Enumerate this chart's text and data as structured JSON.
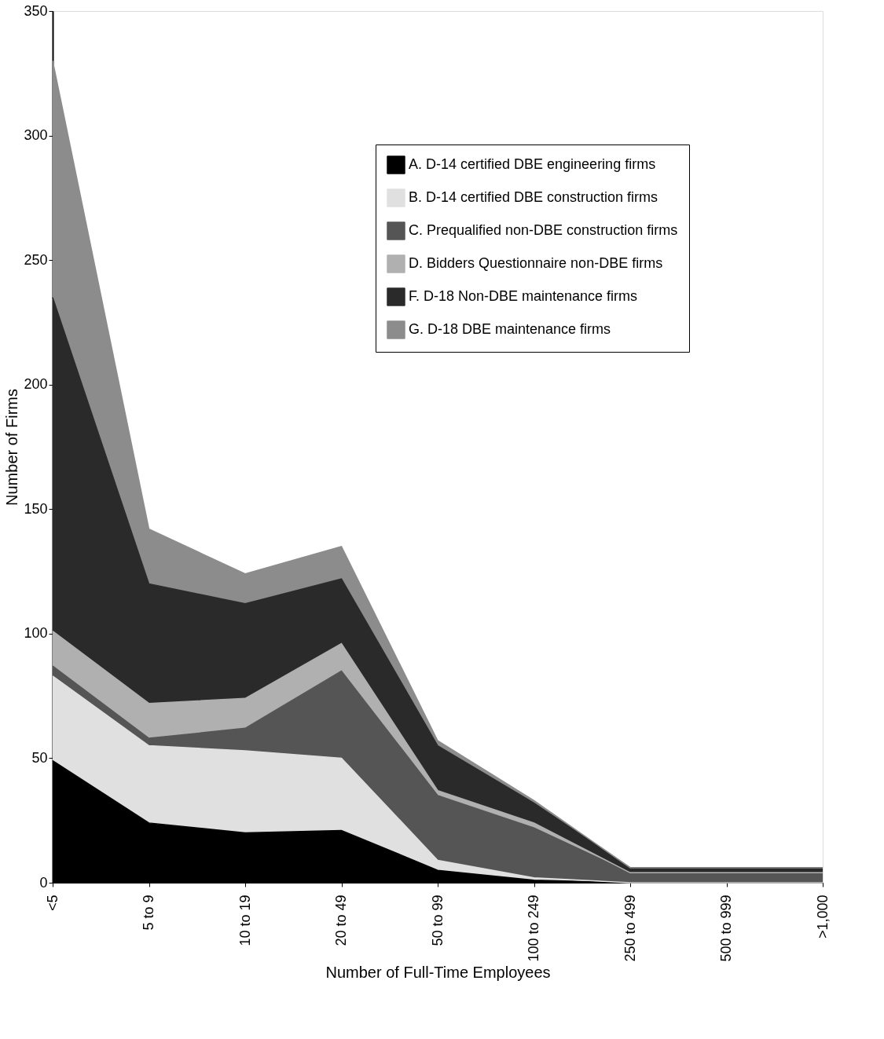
{
  "chart_data": {
    "type": "area",
    "stacked": true,
    "xlabel": "Number of Full-Time Employees",
    "ylabel": "Number of Firms",
    "categories": [
      "<5",
      "5 to 9",
      "10 to 19",
      "20 to 49",
      "50 to 99",
      "100 to 249",
      "250 to 499",
      "500 to 999",
      ">1,000"
    ],
    "series": [
      {
        "name": "A.  D-14 certified DBE engineering firms",
        "color": "#000000",
        "values": [
          49,
          24,
          20,
          21,
          5,
          1,
          0,
          0,
          0
        ]
      },
      {
        "name": "B. D-14 certified DBE construction firms",
        "color": "#e0e0e0",
        "values": [
          34,
          31,
          33,
          29,
          4,
          1,
          0,
          0,
          0
        ]
      },
      {
        "name": "C. Prequalified non-DBE construction firms",
        "color": "#555555",
        "values": [
          4,
          3,
          9,
          35,
          26,
          20,
          4,
          4,
          4
        ]
      },
      {
        "name": "D. Bidders Questionnaire non-DBE firms",
        "color": "#b0b0b0",
        "values": [
          14,
          14,
          12,
          11,
          2,
          2,
          0,
          0,
          0
        ]
      },
      {
        "name": "F. D-18 Non-DBE maintenance firms",
        "color": "#2a2a2a",
        "values": [
          134,
          48,
          38,
          26,
          18,
          8,
          2,
          2,
          2
        ]
      },
      {
        "name": "G. D-18 DBE maintenance firms",
        "color": "#8c8c8c",
        "values": [
          95,
          22,
          12,
          13,
          2,
          1,
          0,
          0,
          0
        ]
      }
    ],
    "ylim": [
      0,
      350
    ],
    "yticks": [
      0,
      50,
      100,
      150,
      200,
      250,
      300,
      350
    ],
    "grid": false,
    "legend": "top right"
  }
}
